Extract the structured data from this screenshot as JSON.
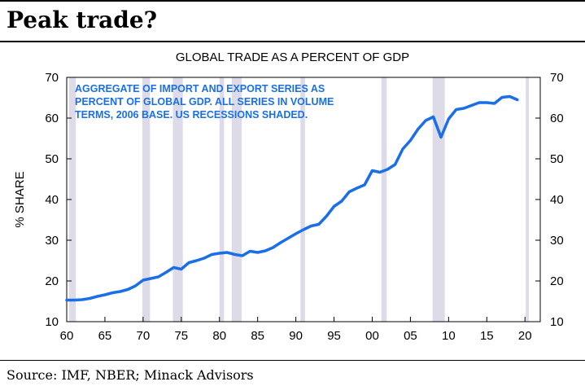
{
  "headline": "Peak trade?",
  "source": "Source: IMF, NBER; Minack Advisors",
  "chart_data": {
    "type": "line",
    "title": "GLOBAL TRADE AS A PERCENT OF GDP",
    "ylabel": "% SHARE",
    "xlabel": "",
    "annotation": [
      "AGGREGATE OF IMPORT AND EXPORT SERIES AS",
      "PERCENT OF GLOBAL GDP.  ALL SERIES IN VOLUME",
      "TERMS, 2006 BASE.  US RECESSIONS SHADED."
    ],
    "xlim": [
      1960,
      2022
    ],
    "ylim": [
      10,
      70
    ],
    "x_ticks": [
      1960,
      1965,
      1970,
      1975,
      1980,
      1985,
      1990,
      1995,
      2000,
      2005,
      2010,
      2015,
      2020
    ],
    "x_tick_labels": [
      "60",
      "65",
      "70",
      "75",
      "80",
      "85",
      "90",
      "95",
      "00",
      "05",
      "10",
      "15",
      "20"
    ],
    "y_ticks": [
      10,
      20,
      30,
      40,
      50,
      60,
      70
    ],
    "y_tick_labels": [
      "10",
      "20",
      "30",
      "40",
      "50",
      "60",
      "70"
    ],
    "dual_y_axis": true,
    "grid": false,
    "line_color": "#1a6fe8",
    "shade_color": "#dedbe8",
    "recessions": [
      [
        1960.3,
        1961.2
      ],
      [
        1969.9,
        1970.9
      ],
      [
        1973.9,
        1975.2
      ],
      [
        1980.0,
        1980.6
      ],
      [
        1981.6,
        1982.9
      ],
      [
        1990.6,
        1991.2
      ],
      [
        2001.2,
        2001.9
      ],
      [
        2007.9,
        2009.5
      ],
      [
        2020.1,
        2020.5
      ]
    ],
    "series": [
      {
        "x": [
          1960,
          1961,
          1962,
          1963,
          1964,
          1965,
          1966,
          1967,
          1968,
          1969,
          1970,
          1971,
          1972,
          1973,
          1974,
          1975,
          1976,
          1977,
          1978,
          1979,
          1980,
          1981,
          1982,
          1983,
          1984,
          1985,
          1986,
          1987,
          1988,
          1989,
          1990,
          1991,
          1992,
          1993,
          1994,
          1995,
          1996,
          1997,
          1998,
          1999,
          2000,
          2001,
          2002,
          2003,
          2004,
          2005,
          2006,
          2007,
          2008,
          2009,
          2010,
          2011,
          2012,
          2013,
          2014,
          2015,
          2016,
          2017,
          2018,
          2019
        ],
        "values": [
          15.3,
          15.3,
          15.4,
          15.7,
          16.2,
          16.6,
          17.1,
          17.4,
          17.9,
          18.8,
          20.2,
          20.6,
          21.0,
          22.1,
          23.3,
          22.9,
          24.5,
          25.0,
          25.6,
          26.5,
          26.8,
          27.0,
          26.5,
          26.2,
          27.3,
          27.0,
          27.4,
          28.2,
          29.4,
          30.5,
          31.6,
          32.6,
          33.5,
          33.9,
          35.9,
          38.3,
          39.6,
          41.9,
          42.8,
          43.6,
          47.1,
          46.7,
          47.4,
          48.6,
          52.4,
          54.5,
          57.3,
          59.4,
          60.3,
          55.3,
          59.8,
          62.1,
          62.4,
          63.1,
          63.8,
          63.8,
          63.6,
          65.1,
          65.3,
          64.5
        ]
      }
    ]
  }
}
